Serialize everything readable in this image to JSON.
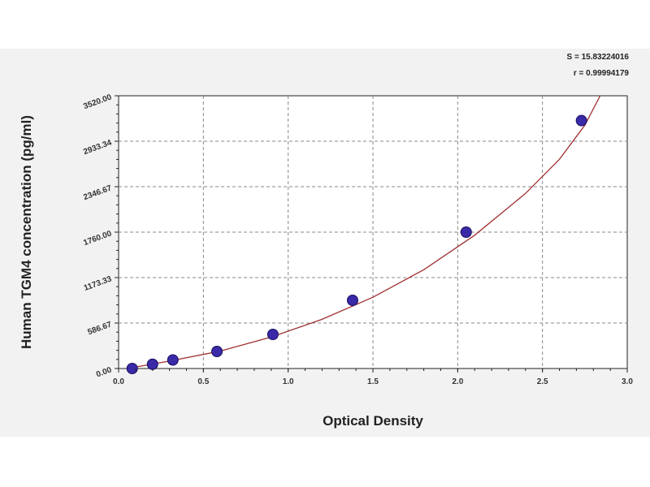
{
  "chart_data": {
    "type": "scatter",
    "xlabel": "Optical Density",
    "ylabel": "Human TGM4 concentration (pg/ml)",
    "xlim": [
      0,
      3.0
    ],
    "ylim": [
      0,
      3520
    ],
    "x_ticks": [
      "0.0",
      "0.5",
      "1.0",
      "1.5",
      "2.0",
      "2.5",
      "3.0"
    ],
    "x_tick_values": [
      0,
      0.5,
      1.0,
      1.5,
      2.0,
      2.5,
      3.0
    ],
    "y_ticks": [
      "0.00",
      "586.67",
      "1173.33",
      "1760.00",
      "2346.67",
      "2933.34",
      "3520.00"
    ],
    "y_tick_values": [
      0,
      586.67,
      1173.33,
      1760,
      2346.67,
      2933.34,
      3520
    ],
    "grid": true,
    "series": [
      {
        "points": [
          {
            "x": 0.08,
            "y": 0
          },
          {
            "x": 0.2,
            "y": 55
          },
          {
            "x": 0.32,
            "y": 110
          },
          {
            "x": 0.58,
            "y": 220
          },
          {
            "x": 0.91,
            "y": 440
          },
          {
            "x": 1.38,
            "y": 880
          },
          {
            "x": 2.05,
            "y": 1760
          },
          {
            "x": 2.73,
            "y": 3200
          }
        ],
        "marker_color": "#3a2aa8"
      }
    ],
    "fit_curve": {
      "color": "#a03030",
      "points": [
        {
          "x": 0.05,
          "y": 0
        },
        {
          "x": 0.3,
          "y": 95
        },
        {
          "x": 0.6,
          "y": 225
        },
        {
          "x": 0.9,
          "y": 405
        },
        {
          "x": 1.2,
          "y": 635
        },
        {
          "x": 1.5,
          "y": 920
        },
        {
          "x": 1.8,
          "y": 1275
        },
        {
          "x": 2.1,
          "y": 1720
        },
        {
          "x": 2.4,
          "y": 2260
        },
        {
          "x": 2.6,
          "y": 2700
        },
        {
          "x": 2.75,
          "y": 3140
        },
        {
          "x": 2.84,
          "y": 3520
        }
      ]
    },
    "annotations": [
      "S = 15.83224016",
      "r = 0.99994179"
    ]
  }
}
